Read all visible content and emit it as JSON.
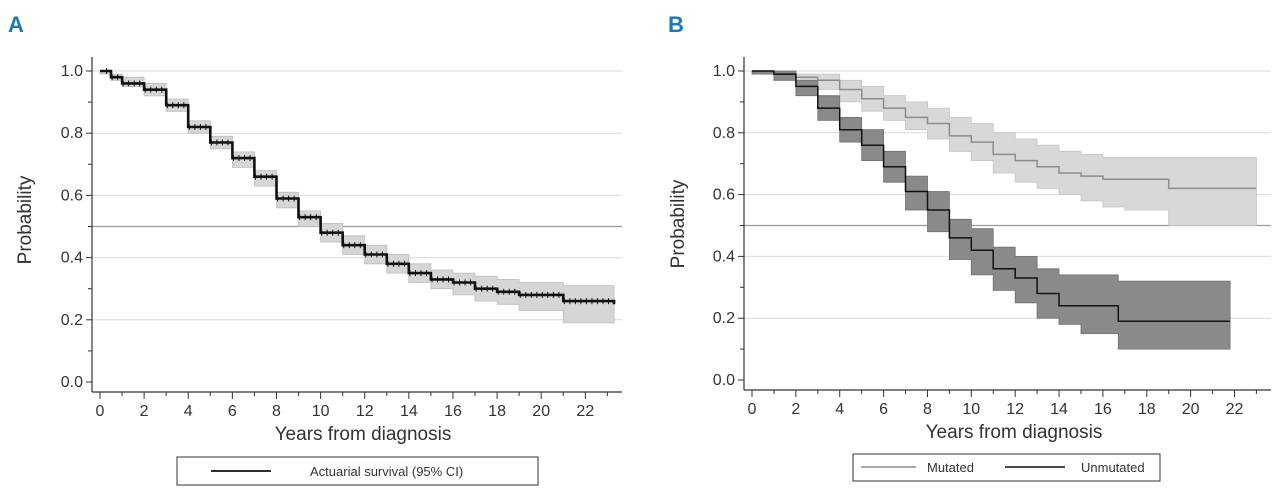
{
  "colors": {
    "panel_label": "#1a7ab8",
    "axis": "#333333",
    "grid": "#d9d9d9",
    "ref_line": "#9a9a9a",
    "overall_line": "#111111",
    "overall_ci": "#d6d6d6",
    "mutated_line": "#8c8c8c",
    "mutated_ci": "#d8d8d8",
    "unmutated_line": "#111111",
    "unmutated_ci": "#8a8a8a"
  },
  "chart_data": [
    {
      "panel": "A",
      "type": "line",
      "xlabel": "Years from diagnosis",
      "ylabel": "Probability",
      "xlim": [
        0,
        23.3
      ],
      "ylim": [
        0,
        1.0
      ],
      "x_ticks": [
        0,
        2,
        4,
        6,
        8,
        10,
        12,
        14,
        16,
        18,
        20,
        22
      ],
      "y_ticks": [
        0,
        0.2,
        0.4,
        0.6,
        0.8,
        1.0
      ],
      "y_tick_labels": [
        "0.0",
        "0.2",
        "0.4",
        "0.6",
        "0.8",
        "1.0"
      ],
      "grid": true,
      "reference_line_y": 0.5,
      "legend": {
        "position": "bottom",
        "entries": [
          "Actuarial survival (95% CI)"
        ]
      },
      "series": [
        {
          "name": "Actuarial survival (95% CI)",
          "style": "dark-solid-with-light-ci",
          "x": [
            0,
            0.5,
            1,
            2,
            3,
            4,
            5,
            6,
            7,
            8,
            9,
            10,
            11,
            12,
            13,
            14,
            15,
            16,
            17,
            18,
            19,
            21,
            23.3
          ],
          "y": [
            1.0,
            0.98,
            0.96,
            0.94,
            0.89,
            0.82,
            0.77,
            0.72,
            0.66,
            0.59,
            0.53,
            0.48,
            0.44,
            0.41,
            0.38,
            0.35,
            0.33,
            0.32,
            0.3,
            0.29,
            0.28,
            0.26,
            0.25
          ],
          "lower": [
            0.99,
            0.97,
            0.95,
            0.92,
            0.87,
            0.8,
            0.75,
            0.69,
            0.63,
            0.56,
            0.5,
            0.45,
            0.41,
            0.38,
            0.35,
            0.32,
            0.3,
            0.28,
            0.26,
            0.25,
            0.23,
            0.19,
            0.19
          ],
          "upper": [
            1.0,
            0.99,
            0.98,
            0.96,
            0.91,
            0.84,
            0.79,
            0.74,
            0.68,
            0.61,
            0.55,
            0.51,
            0.47,
            0.44,
            0.41,
            0.38,
            0.36,
            0.35,
            0.34,
            0.33,
            0.32,
            0.31,
            0.31
          ]
        }
      ]
    },
    {
      "panel": "B",
      "type": "line",
      "xlabel": "Years from diagnosis",
      "ylabel": "Probability",
      "xlim": [
        0,
        23.3
      ],
      "ylim": [
        0,
        1.0
      ],
      "x_ticks": [
        0,
        2,
        4,
        6,
        8,
        10,
        12,
        14,
        16,
        18,
        20,
        22
      ],
      "y_ticks": [
        0,
        0.2,
        0.4,
        0.6,
        0.8,
        1.0
      ],
      "y_tick_labels": [
        "0.0",
        "0.2",
        "0.4",
        "0.6",
        "0.8",
        "1.0"
      ],
      "grid": true,
      "reference_line_y": 0.5,
      "legend": {
        "position": "bottom",
        "entries": [
          "Mutated",
          "Unmutated"
        ]
      },
      "series": [
        {
          "name": "Mutated",
          "style": "gray-line-with-light-ci",
          "x": [
            0,
            1,
            2,
            3,
            4,
            5,
            6,
            7,
            8,
            9,
            10,
            11,
            12,
            13,
            14,
            15,
            16,
            17,
            18,
            19,
            23
          ],
          "y": [
            1.0,
            0.99,
            0.98,
            0.97,
            0.94,
            0.91,
            0.88,
            0.85,
            0.83,
            0.79,
            0.77,
            0.73,
            0.71,
            0.69,
            0.67,
            0.66,
            0.65,
            0.65,
            0.65,
            0.62,
            0.62
          ],
          "lower": [
            0.99,
            0.98,
            0.96,
            0.94,
            0.9,
            0.87,
            0.84,
            0.81,
            0.78,
            0.74,
            0.71,
            0.67,
            0.64,
            0.62,
            0.6,
            0.58,
            0.56,
            0.55,
            0.55,
            0.5,
            0.5
          ],
          "upper": [
            1.0,
            1.0,
            0.99,
            0.99,
            0.97,
            0.95,
            0.92,
            0.9,
            0.88,
            0.85,
            0.83,
            0.8,
            0.78,
            0.76,
            0.74,
            0.73,
            0.72,
            0.72,
            0.72,
            0.72,
            0.72
          ]
        },
        {
          "name": "Unmutated",
          "style": "dark-line-with-dark-ci",
          "x": [
            0,
            1,
            2,
            3,
            4,
            5,
            6,
            7,
            8,
            9,
            10,
            11,
            12,
            13,
            14,
            15,
            16,
            16.7,
            21.8
          ],
          "y": [
            1.0,
            0.99,
            0.95,
            0.88,
            0.81,
            0.76,
            0.69,
            0.61,
            0.55,
            0.46,
            0.42,
            0.36,
            0.33,
            0.28,
            0.24,
            0.24,
            0.24,
            0.19,
            0.19
          ],
          "lower": [
            0.99,
            0.97,
            0.92,
            0.84,
            0.77,
            0.71,
            0.64,
            0.55,
            0.48,
            0.39,
            0.34,
            0.29,
            0.25,
            0.2,
            0.18,
            0.15,
            0.15,
            0.1,
            0.1
          ],
          "upper": [
            1.0,
            1.0,
            0.97,
            0.92,
            0.85,
            0.81,
            0.74,
            0.66,
            0.61,
            0.52,
            0.49,
            0.43,
            0.4,
            0.36,
            0.34,
            0.34,
            0.34,
            0.32,
            0.32
          ]
        }
      ]
    }
  ]
}
